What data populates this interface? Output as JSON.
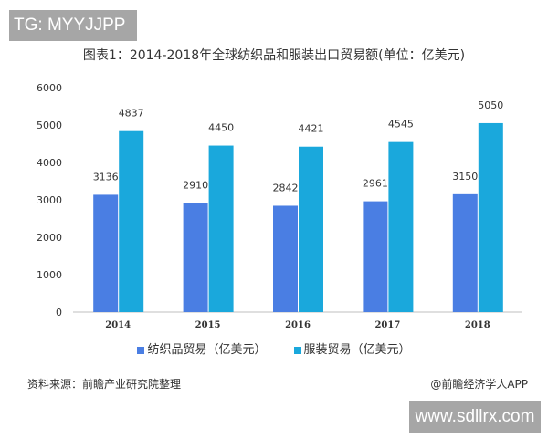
{
  "watermark_top": "TG: MYYJJPP",
  "watermark_bottom": "www.sdllrx.com",
  "source": "资料来源：前瞻产业研究院整理",
  "credit": "@前瞻经济学人APP",
  "chart_data": {
    "type": "bar",
    "title": "图表1：2014-2018年全球纺织品和服装出口贸易额(单位：亿美元)",
    "categories": [
      "2014",
      "2015",
      "2016",
      "2017",
      "2018"
    ],
    "series": [
      {
        "name": "纺织品贸易（亿美元）",
        "values": [
          3136,
          2910,
          2842,
          2961,
          3150
        ],
        "color": "#4a7ee3"
      },
      {
        "name": "服装贸易（亿美元）",
        "values": [
          4837,
          4450,
          4421,
          4545,
          5050
        ],
        "color": "#1aa8dc"
      }
    ],
    "ylim": [
      0,
      6000
    ],
    "yticks": [
      "0",
      "1000",
      "2000",
      "3000",
      "4000",
      "5000",
      "6000"
    ],
    "grid": false,
    "legend": "bottom",
    "xlabel": "",
    "ylabel": ""
  }
}
